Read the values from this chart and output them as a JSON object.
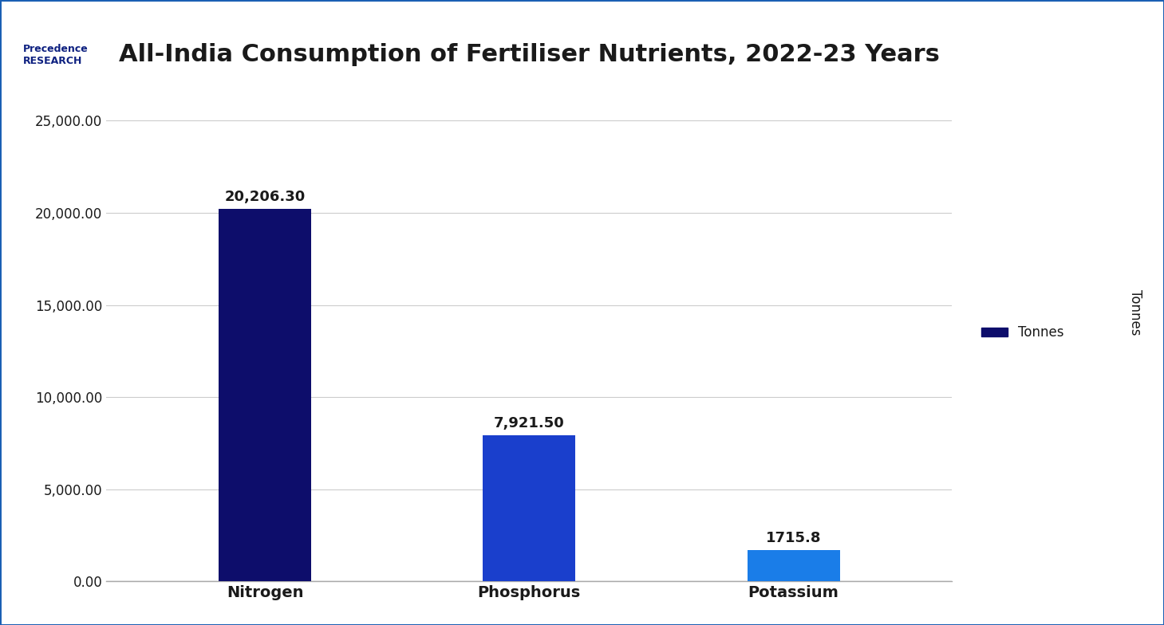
{
  "title": "All-India Consumption of Fertiliser Nutrients, 2022-23 Years",
  "categories": [
    "Nitrogen",
    "Phosphorus",
    "Potassium"
  ],
  "values": [
    20206.3,
    7921.5,
    1715.8
  ],
  "bar_colors": [
    "#0d0d6b",
    "#1a3fcc",
    "#1a7de8"
  ],
  "bar_labels": [
    "20,206.30",
    "7,921.50",
    "1715.8"
  ],
  "ylabel_rotated": "Tonnes",
  "legend_label": "Tonnes",
  "legend_color": "#0d0d6b",
  "ylim": [
    0,
    27000
  ],
  "yticks": [
    0,
    5000,
    10000,
    15000,
    20000,
    25000
  ],
  "ytick_labels": [
    "0.00",
    "5,000.00",
    "10,000.00",
    "15,000.00",
    "20,000.00",
    "25,000.00"
  ],
  "background_color": "#ffffff",
  "plot_bg_color": "#ffffff",
  "title_fontsize": 22,
  "title_color": "#1a1a1a",
  "bar_width": 0.35,
  "grid_color": "#cccccc",
  "border_color": "#1a5fb4"
}
